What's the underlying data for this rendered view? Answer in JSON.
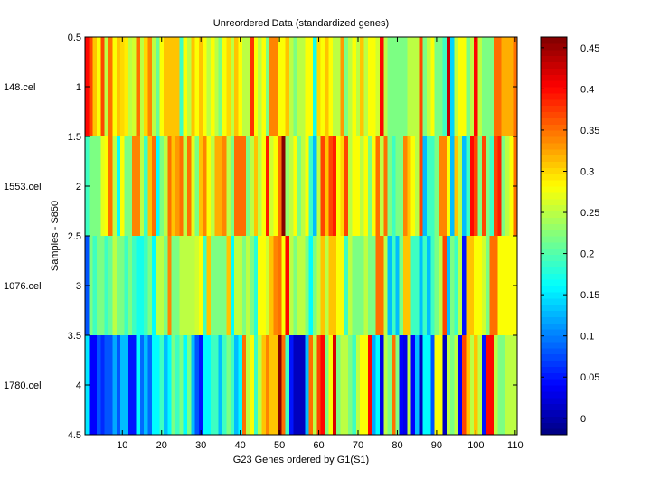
{
  "chart_data": {
    "type": "heatmap",
    "title": "Unreordered Data (standardized genes)",
    "xlabel": "G23 Genes ordered by G1(S1)",
    "ylabel": "Samples - S850",
    "xlim": [
      0.5,
      110.5
    ],
    "ylim": [
      0.5,
      4.5
    ],
    "x_ticks": [
      10,
      20,
      30,
      40,
      50,
      60,
      70,
      80,
      90,
      100,
      110
    ],
    "y_ticks": [
      0.5,
      1,
      1.5,
      2,
      2.5,
      3,
      3.5,
      4,
      4.5
    ],
    "row_labels": [
      "148.cel",
      "1553.cel",
      "1076.cel",
      "1780.cel"
    ],
    "colormap": "jet",
    "clim": [
      -0.02,
      0.463
    ],
    "colorbar_ticks": [
      0,
      0.05,
      0.1,
      0.15,
      0.2,
      0.25,
      0.3,
      0.35,
      0.4,
      0.45
    ],
    "values": [
      [
        0.4,
        0.37,
        0.31,
        0.28,
        0.37,
        0.25,
        0.35,
        0.28,
        0.31,
        0.3,
        0.29,
        0.25,
        0.26,
        0.35,
        0.25,
        0.3,
        0.34,
        0.25,
        0.21,
        0.28,
        0.31,
        0.31,
        0.31,
        0.31,
        0.19,
        0.28,
        0.25,
        0.31,
        0.28,
        0.31,
        0.28,
        0.25,
        0.28,
        0.25,
        0.22,
        0.28,
        0.3,
        0.25,
        0.31,
        0.28,
        0.25,
        0.25,
        0.38,
        0.28,
        0.25,
        0.28,
        0.22,
        0.34,
        0.34,
        0.28,
        0.28,
        0.31,
        0.25,
        0.22,
        0.25,
        0.25,
        0.28,
        0.28,
        0.17,
        0.3,
        0.28,
        0.31,
        0.28,
        0.25,
        0.25,
        0.33,
        0.22,
        0.25,
        0.28,
        0.25,
        0.31,
        0.25,
        0.28,
        0.28,
        0.26,
        0.4,
        0.25,
        0.22,
        0.22,
        0.22,
        0.22,
        0.22,
        0.25,
        0.25,
        0.25,
        0.37,
        0.22,
        0.25,
        0.28,
        0.22,
        0.22,
        0.19,
        0.43,
        0.14,
        0.25,
        0.28,
        0.28,
        0.22,
        0.25,
        0.4,
        0.25,
        0.22,
        0.22,
        0.22,
        0.35,
        0.35,
        0.32,
        0.32,
        0.32,
        0.35
      ],
      [
        0.19,
        0.22,
        0.22,
        0.22,
        0.27,
        0.28,
        0.35,
        0.25,
        0.16,
        0.28,
        0.22,
        0.22,
        0.34,
        0.34,
        0.25,
        0.19,
        0.31,
        0.35,
        0.16,
        0.22,
        0.25,
        0.35,
        0.31,
        0.33,
        0.35,
        0.25,
        0.35,
        0.27,
        0.22,
        0.31,
        0.34,
        0.28,
        0.25,
        0.32,
        0.32,
        0.34,
        0.25,
        0.22,
        0.35,
        0.35,
        0.35,
        0.22,
        0.25,
        0.31,
        0.25,
        0.28,
        0.39,
        0.26,
        0.28,
        0.35,
        0.46,
        0.23,
        0.25,
        0.28,
        0.22,
        0.25,
        0.28,
        0.19,
        0.13,
        0.25,
        0.37,
        0.31,
        0.37,
        0.39,
        0.28,
        0.3,
        0.37,
        0.25,
        0.28,
        0.28,
        0.25,
        0.28,
        0.22,
        0.28,
        0.35,
        0.25,
        0.35,
        0.22,
        0.19,
        0.22,
        0.22,
        0.34,
        0.31,
        0.28,
        0.25,
        0.37,
        0.13,
        0.19,
        0.19,
        0.22,
        0.34,
        0.34,
        0.28,
        0.13,
        0.31,
        0.25,
        0.13,
        0.19,
        0.4,
        0.37,
        0.22,
        0.37,
        0.22,
        0.19,
        0.37,
        0.39,
        0.22,
        0.25,
        0.28,
        0.35
      ],
      [
        0.08,
        0.22,
        0.19,
        0.22,
        0.22,
        0.19,
        0.21,
        0.25,
        0.22,
        0.22,
        0.19,
        0.22,
        0.19,
        0.17,
        0.17,
        0.19,
        0.22,
        0.16,
        0.25,
        0.25,
        0.22,
        0.34,
        0.22,
        0.22,
        0.25,
        0.25,
        0.25,
        0.25,
        0.26,
        0.28,
        0.19,
        0.31,
        0.22,
        0.22,
        0.22,
        0.22,
        0.31,
        0.16,
        0.25,
        0.25,
        0.22,
        0.25,
        0.22,
        0.18,
        0.28,
        0.28,
        0.26,
        0.31,
        0.34,
        0.35,
        0.28,
        0.4,
        0.25,
        0.22,
        0.25,
        0.25,
        0.22,
        0.16,
        0.22,
        0.25,
        0.31,
        0.25,
        0.31,
        0.31,
        0.28,
        0.28,
        0.19,
        0.25,
        0.22,
        0.22,
        0.22,
        0.25,
        0.22,
        0.22,
        0.35,
        0.35,
        0.25,
        0.13,
        0.19,
        0.13,
        0.22,
        0.31,
        0.31,
        0.19,
        0.19,
        0.13,
        0.19,
        0.13,
        0.19,
        0.22,
        0.25,
        0.37,
        0.13,
        0.22,
        0.19,
        0.25,
        0.05,
        0.31,
        0.31,
        0.28,
        0.28,
        0.26,
        0.22,
        0.35,
        0.35,
        0.28,
        0.28,
        0.28,
        0.28,
        0.28
      ],
      [
        0.15,
        0.04,
        0.04,
        0.08,
        0.06,
        0.08,
        0.08,
        0.12,
        0.08,
        0.13,
        0.13,
        0.05,
        0.05,
        0.16,
        0.09,
        0.13,
        0.09,
        0.16,
        0.16,
        0.19,
        0.13,
        0.16,
        0.22,
        0.19,
        0.22,
        0.16,
        0.22,
        0.13,
        0.08,
        0.05,
        0.16,
        0.16,
        0.19,
        0.19,
        0.13,
        0.19,
        0.22,
        0.19,
        0.13,
        0.16,
        0.35,
        0.25,
        0.28,
        0.19,
        0.25,
        0.31,
        0.34,
        0.31,
        0.31,
        0.46,
        0.35,
        0.19,
        0.05,
        0.01,
        0.01,
        0.01,
        0.13,
        0.35,
        0.25,
        0.37,
        0.4,
        0.22,
        0.28,
        0.42,
        0.22,
        0.25,
        0.25,
        0.22,
        0.19,
        0.25,
        0.28,
        0.28,
        0.4,
        0.12,
        0.16,
        0.03,
        0.25,
        0.22,
        0.35,
        0.22,
        0.04,
        0.03,
        0.25,
        0.04,
        0.13,
        0.01,
        0.16,
        0.16,
        0.08,
        0.28,
        0.28,
        0.01,
        0.25,
        0.22,
        0.25,
        0.04,
        0.37,
        0.31,
        0.25,
        0.31,
        0.25,
        0.05,
        0.4,
        0.4,
        0.25,
        0.22,
        0.22,
        0.25,
        0.25,
        0.25
      ]
    ]
  }
}
